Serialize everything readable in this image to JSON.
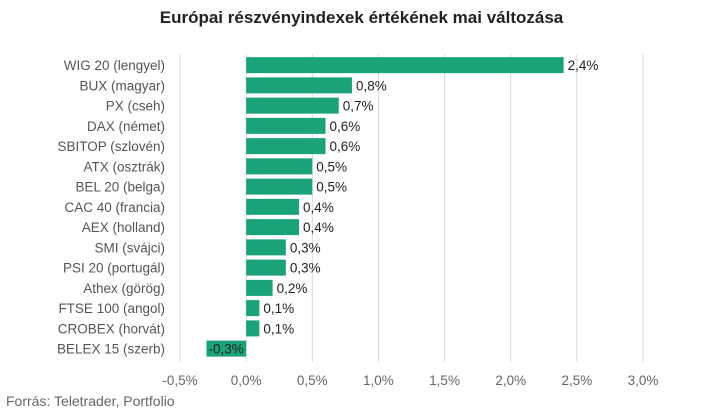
{
  "chart_data": {
    "type": "bar",
    "orientation": "horizontal",
    "title": "Európai részvényindexek értékének mai változása",
    "categories": [
      "WIG 20 (lengyel)",
      "BUX (magyar)",
      "PX (cseh)",
      "DAX (német)",
      "SBITOP (szlovén)",
      "ATX (osztrák)",
      "BEL 20 (belga)",
      "CAC 40 (francia)",
      "AEX (holland)",
      "SMI (svájci)",
      "PSI 20 (portugál)",
      "Athex (görög)",
      "FTSE 100 (angol)",
      "CROBEX (horvát)",
      "BELEX 15 (szerb)"
    ],
    "values": [
      2.4,
      0.8,
      0.7,
      0.6,
      0.6,
      0.5,
      0.5,
      0.4,
      0.4,
      0.3,
      0.3,
      0.2,
      0.1,
      0.1,
      -0.3
    ],
    "value_labels": [
      "2,4%",
      "0,8%",
      "0,7%",
      "0,6%",
      "0,6%",
      "0,5%",
      "0,5%",
      "0,4%",
      "0,4%",
      "0,3%",
      "0,3%",
      "0,2%",
      "0,1%",
      "0,1%",
      "-0,3%"
    ],
    "xlim": [
      -0.5,
      3.0
    ],
    "xticks": [
      -0.5,
      0,
      0.5,
      1.0,
      1.5,
      2.0,
      2.5,
      3.0
    ],
    "xtick_labels": [
      "-0,5%",
      "0,0%",
      "0,5%",
      "1,0%",
      "1,5%",
      "2,0%",
      "2,5%",
      "3,0%"
    ],
    "grid": true,
    "bar_color": "#1aa37a",
    "grid_color": "#d9d9d9"
  },
  "source": "Forrás: Teletrader, Portfolio"
}
